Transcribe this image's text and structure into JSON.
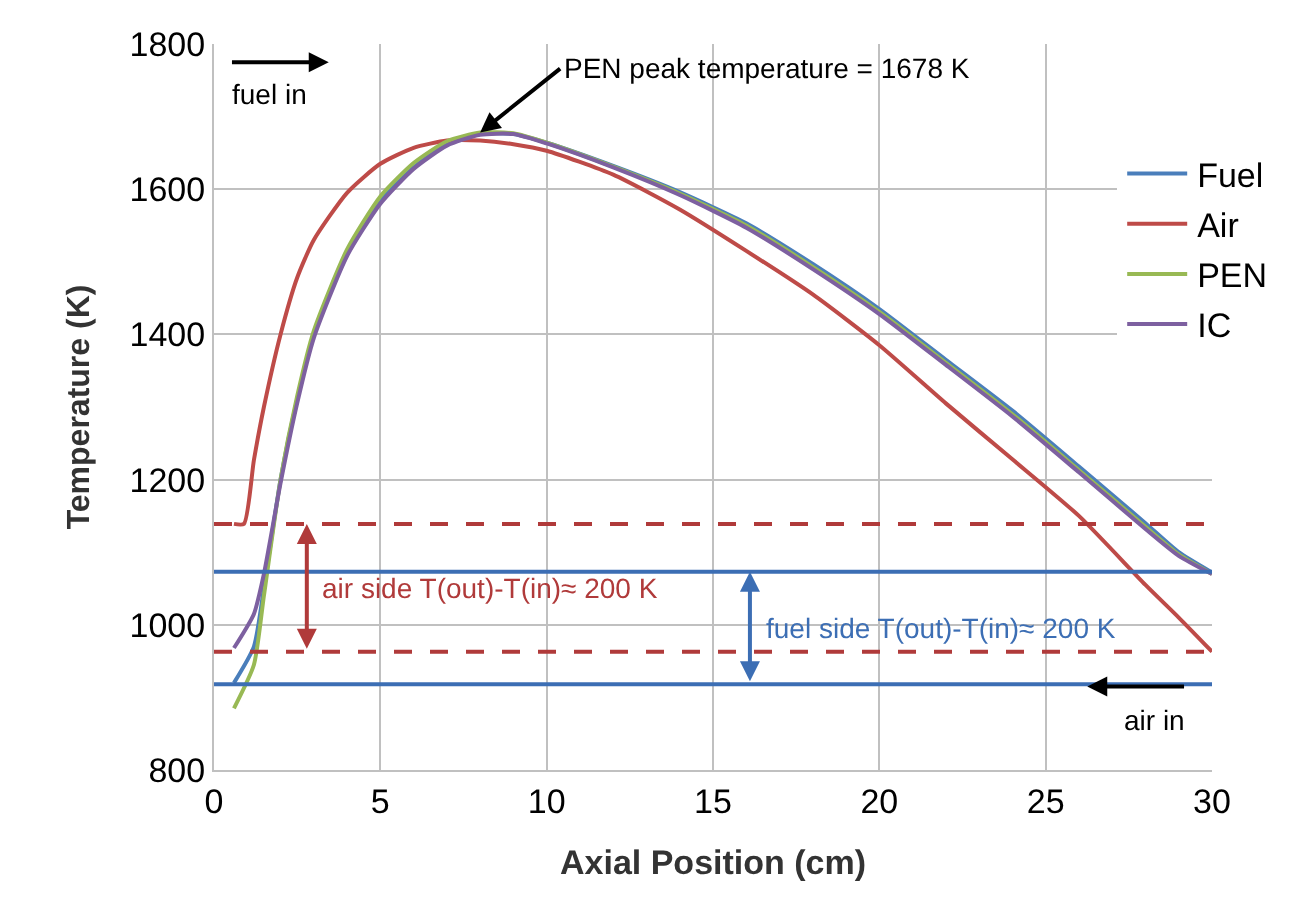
{
  "chart_data": {
    "type": "line",
    "xlabel": "Axial Position (cm)",
    "ylabel": "Temperature (K)",
    "xlim": [
      0,
      30
    ],
    "xticks": [
      0,
      5,
      10,
      15,
      20,
      25,
      30
    ],
    "ylim": [
      800,
      1800
    ],
    "yticks": [
      800,
      1000,
      1200,
      1400,
      1600,
      1800
    ],
    "grid": true,
    "legend": "right",
    "line_style": "solid",
    "marker": "none",
    "series": [
      {
        "name": "Fuel",
        "color": "#4a7ebb",
        "x": [
          0.6,
          1.2,
          1.5,
          2,
          2.5,
          3,
          4,
          5,
          6,
          7,
          8,
          9,
          10,
          12,
          14,
          16,
          18,
          20,
          22,
          24,
          26,
          28,
          29,
          30
        ],
        "values": [
          920,
          970,
          1050,
          1200,
          1310,
          1400,
          1510,
          1583,
          1630,
          1662,
          1676,
          1676,
          1664,
          1632,
          1596,
          1553,
          1497,
          1435,
          1365,
          1295,
          1218,
          1140,
          1100,
          1072
        ]
      },
      {
        "name": "Air",
        "color": "#be4b48",
        "x": [
          0.6,
          0.9,
          1.2,
          1.5,
          2,
          2.5,
          3,
          4,
          5,
          6,
          7,
          8,
          9,
          10,
          12,
          14,
          16,
          18,
          20,
          22,
          24,
          26,
          28,
          29,
          30
        ],
        "values": [
          1139,
          1139,
          1227,
          1300,
          1400,
          1478,
          1530,
          1595,
          1635,
          1657,
          1667,
          1667,
          1662,
          1653,
          1620,
          1572,
          1515,
          1455,
          1385,
          1305,
          1228,
          1150,
          1055,
          1010,
          963
        ]
      },
      {
        "name": "PEN",
        "color": "#98b954",
        "x": [
          0.6,
          1.2,
          1.5,
          2,
          2.5,
          3,
          4,
          5,
          6,
          7,
          8,
          9,
          10,
          12,
          14,
          16,
          18,
          20,
          22,
          24,
          26,
          28,
          29,
          30
        ],
        "values": [
          885,
          945,
          1040,
          1200,
          1315,
          1405,
          1517,
          1590,
          1636,
          1666,
          1678,
          1677,
          1664,
          1631,
          1594,
          1550,
          1493,
          1431,
          1361,
          1290,
          1213,
          1135,
          1097,
          1070
        ]
      },
      {
        "name": "IC",
        "color": "#7d60a0",
        "x": [
          0.6,
          1.2,
          1.5,
          2,
          2.5,
          3,
          4,
          5,
          6,
          7,
          8,
          9,
          10,
          12,
          14,
          16,
          18,
          20,
          22,
          24,
          26,
          28,
          29,
          30
        ],
        "values": [
          968,
          1015,
          1070,
          1195,
          1305,
          1395,
          1508,
          1580,
          1628,
          1660,
          1675,
          1676,
          1663,
          1630,
          1592,
          1547,
          1490,
          1428,
          1358,
          1287,
          1210,
          1132,
          1095,
          1070
        ]
      }
    ],
    "ref_lines": [
      {
        "axis": "y",
        "value": 1139,
        "color": "#b03a3a",
        "line_style": "dashed",
        "label": "air side T(out)-T(in)≈ 200 K"
      },
      {
        "axis": "y",
        "value": 963,
        "color": "#b03a3a",
        "line_style": "dashed"
      },
      {
        "axis": "y",
        "value": 918,
        "color": "#3c6eb4",
        "line_style": "solid"
      },
      {
        "axis": "y",
        "value": 1073,
        "color": "#3c6eb4",
        "line_style": "solid",
        "label": "fuel side T(out)-T(in)≈ 200 K"
      }
    ],
    "annotations": [
      "fuel in",
      "air in",
      {
        "text": "PEN peak temperature = 1678 K",
        "x": 8,
        "y": 1678
      }
    ]
  }
}
